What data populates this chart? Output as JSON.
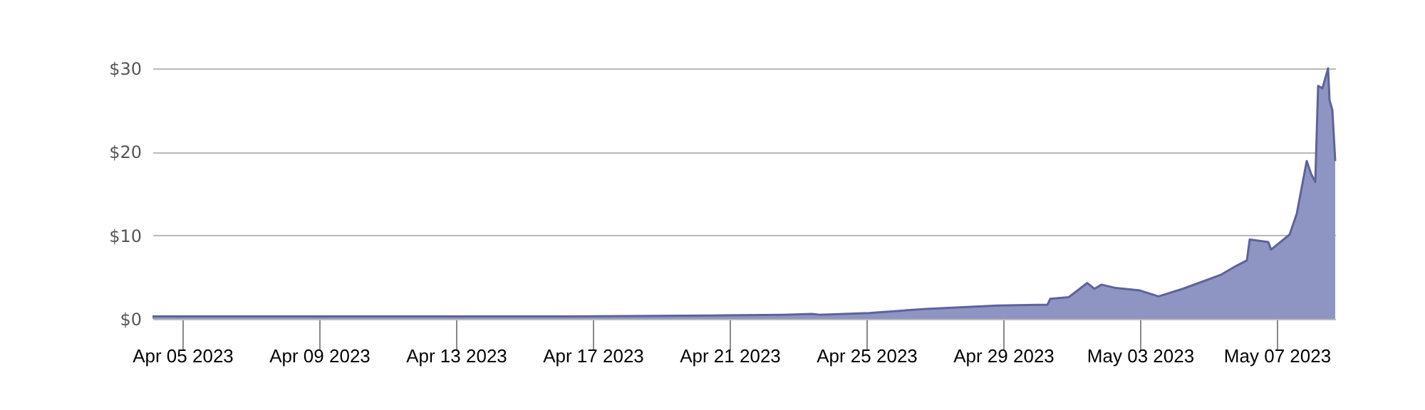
{
  "chart_data": {
    "type": "area",
    "color": "#8f95c2",
    "x": [
      "2023-04-04T03:00",
      "2023-04-08T00:00",
      "2023-04-12T04:00",
      "2023-04-16T08:00",
      "2023-04-20T12:00",
      "2023-04-22T14:00",
      "2023-04-23T10:00",
      "2023-04-23T15:00",
      "2023-04-25T02:00",
      "2023-04-26T18:00",
      "2023-04-28T20:00",
      "2023-04-30T07:00",
      "2023-04-30T09:00",
      "2023-04-30T22:00",
      "2023-05-01T11:00",
      "2023-05-01T16:00",
      "2023-05-01T21:00",
      "2023-05-02T07:00",
      "2023-05-03T00:00",
      "2023-05-03T13:00",
      "2023-05-04T06:00",
      "2023-05-05T09:00",
      "2023-05-05T19:00",
      "2023-05-06T03:00",
      "2023-05-06T05:00",
      "2023-05-06T18:00",
      "2023-05-06T20:00",
      "2023-05-07T09:00",
      "2023-05-07T14:00",
      "2023-05-07T21:00",
      "2023-05-08T00:00",
      "2023-05-08T03:00",
      "2023-05-08T05:00",
      "2023-05-08T08:00",
      "2023-05-08T12:00",
      "2023-05-08T13:00",
      "2023-05-08T15:00",
      "2023-05-08T17:00"
    ],
    "values": [
      0.3,
      0.3,
      0.3,
      0.3,
      0.4,
      0.5,
      0.6,
      0.5,
      0.7,
      1.2,
      1.6,
      1.7,
      2.4,
      2.6,
      4.3,
      3.6,
      4.1,
      3.7,
      3.4,
      2.7,
      3.6,
      5.3,
      6.3,
      7.0,
      9.5,
      9.2,
      8.3,
      10.1,
      12.6,
      18.9,
      17.4,
      16.4,
      27.9,
      27.6,
      30,
      26.2,
      25.0,
      18.9
    ],
    "xlim": [
      "2023-04-04T03:00",
      "2023-05-08T17:00"
    ],
    "xticks": [
      {
        "value": "2023-04-05",
        "label": "Apr 05 2023"
      },
      {
        "value": "2023-04-09",
        "label": "Apr 09 2023"
      },
      {
        "value": "2023-04-13",
        "label": "Apr 13 2023"
      },
      {
        "value": "2023-04-17",
        "label": "Apr 17 2023"
      },
      {
        "value": "2023-04-21",
        "label": "Apr 21 2023"
      },
      {
        "value": "2023-04-25",
        "label": "Apr 25 2023"
      },
      {
        "value": "2023-04-29",
        "label": "Apr 29 2023"
      },
      {
        "value": "2023-05-03",
        "label": "May 03 2023"
      },
      {
        "value": "2023-05-07",
        "label": "May 07 2023"
      }
    ],
    "ylim": [
      0,
      30
    ],
    "yticks": [
      {
        "value": 0,
        "label": "$0"
      },
      {
        "value": 10,
        "label": "$10"
      },
      {
        "value": 20,
        "label": "$20"
      },
      {
        "value": 30,
        "label": "$30"
      }
    ],
    "grid": "y"
  }
}
